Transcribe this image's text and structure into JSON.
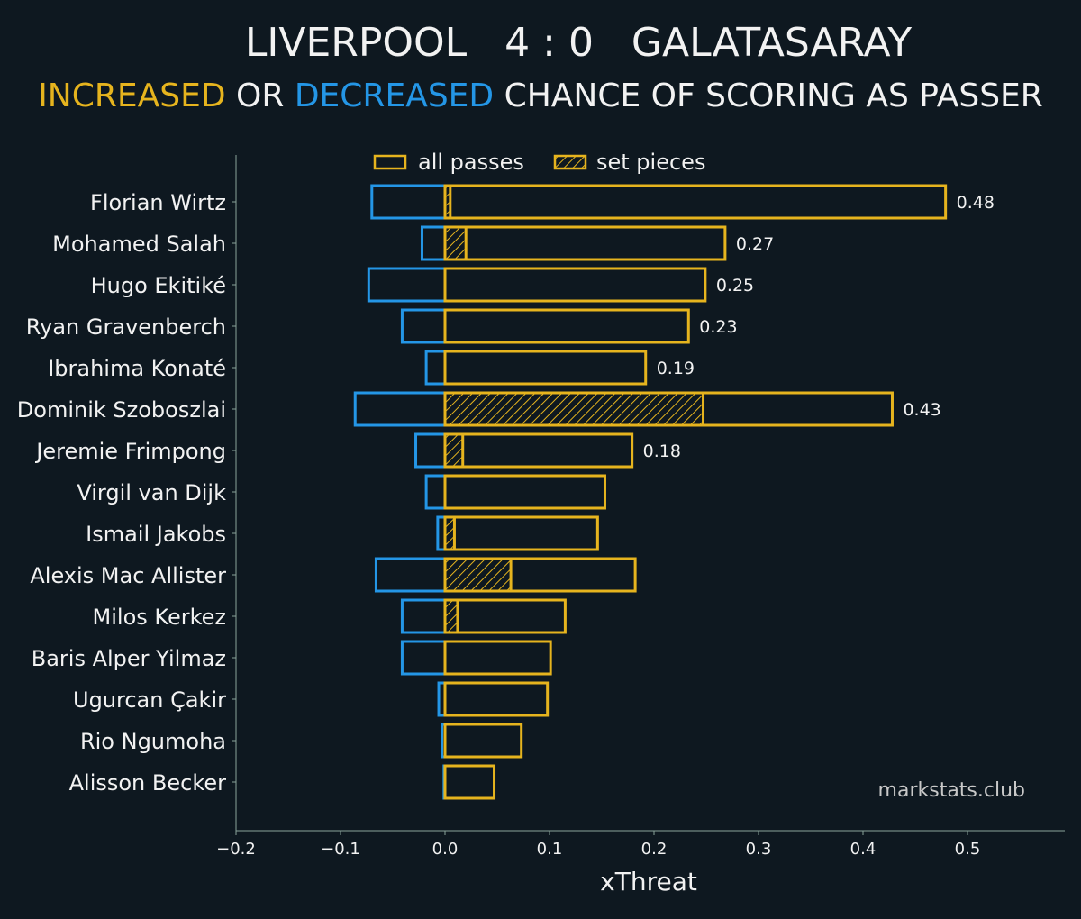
{
  "title": {
    "home": "LIVERPOOL",
    "score": "4 : 0",
    "away": "GALATASARAY"
  },
  "subtitle": {
    "increased": "INCREASED",
    "or": " OR ",
    "decreased": "DECREASED",
    "rest": " CHANCE OF SCORING AS PASSER"
  },
  "watermark": "markstats.club",
  "colors": {
    "positive": "#e6b41e",
    "negative": "#2496e6",
    "background": "#0e1820"
  },
  "chart_data": {
    "type": "bar",
    "orientation": "horizontal",
    "xlabel": "xThreat",
    "xlim": [
      -0.2,
      0.59
    ],
    "xticks": [
      "−0.2",
      "−0.1",
      "0.0",
      "0.1",
      "0.2",
      "0.3",
      "0.4",
      "0.5"
    ],
    "xtick_values": [
      -0.2,
      -0.1,
      0,
      0.1,
      0.2,
      0.3,
      0.4,
      0.5
    ],
    "legend": {
      "position": "top",
      "items": [
        "all passes",
        "set pieces"
      ]
    },
    "categories": [
      "Florian Wirtz",
      "Mohamed Salah",
      "Hugo Ekitiké",
      "Ryan Gravenberch",
      "Ibrahima Konaté",
      "Dominik Szoboszlai",
      "Jeremie Frimpong",
      "Virgil van Dijk",
      "Ismail Jakobs",
      "Alexis Mac Allister",
      "Milos Kerkez",
      "Baris Alper Yilmaz",
      "Ugurcan Çakir",
      "Rio Ngumoha",
      "Alisson Becker"
    ],
    "series": [
      {
        "name": "decreased",
        "values": [
          -0.07,
          -0.022,
          -0.073,
          -0.041,
          -0.018,
          -0.086,
          -0.028,
          -0.018,
          -0.007,
          -0.066,
          -0.041,
          -0.041,
          -0.006,
          -0.003,
          -0.001
        ]
      },
      {
        "name": "all passes",
        "values": [
          0.479,
          0.268,
          0.249,
          0.233,
          0.192,
          0.428,
          0.179,
          0.153,
          0.146,
          0.182,
          0.115,
          0.101,
          0.098,
          0.073,
          0.047
        ]
      },
      {
        "name": "set pieces",
        "values": [
          0.005,
          0.02,
          0,
          0,
          0,
          0.247,
          0.017,
          0,
          0.009,
          0.063,
          0.012,
          0,
          0,
          0,
          0
        ]
      }
    ],
    "data_labels": [
      "0.48",
      "0.27",
      "0.25",
      "0.23",
      "0.19",
      "0.43",
      "0.18",
      null,
      null,
      null,
      null,
      null,
      null,
      null,
      null
    ]
  }
}
